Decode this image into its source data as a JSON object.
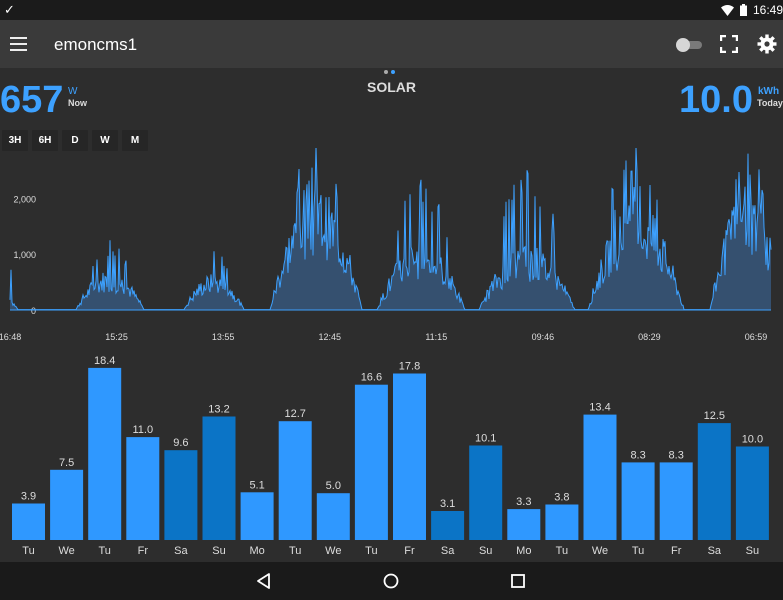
{
  "status_bar": {
    "notification_icon": "checkmark-icon",
    "time": "16:49"
  },
  "app_bar": {
    "title": "emoncms1"
  },
  "page": {
    "title": "SOLAR"
  },
  "power": {
    "value": "657",
    "unit": "W",
    "label": "Now"
  },
  "energy": {
    "value": "10.0",
    "unit": "kWh",
    "label": "Today"
  },
  "ranges": [
    "3H",
    "6H",
    "D",
    "W",
    "M"
  ],
  "colors": {
    "accent": "#3da1ff",
    "bar_light": "#2f98ff",
    "bar_dark": "#0b74c6",
    "area_fill": "#35506f"
  },
  "chart_data": [
    {
      "type": "area",
      "ylim": [
        0,
        2900
      ],
      "yticks": [
        0,
        1000,
        2000
      ],
      "ytick_labels": [
        "0",
        "1,000",
        "2,000"
      ],
      "xtick_labels": [
        "16:48",
        "15:25",
        "13:55",
        "12:45",
        "11:15",
        "09:46",
        "08:29",
        "06:59"
      ],
      "days": [
        {
          "peak": 720,
          "typical": 360
        },
        {
          "peak": 1250,
          "typical": 560
        },
        {
          "peak": 1050,
          "typical": 500
        },
        {
          "peak": 2930,
          "typical": 1700
        },
        {
          "peak": 2330,
          "typical": 950
        },
        {
          "peak": 2500,
          "typical": 900
        },
        {
          "peak": 2910,
          "typical": 1500
        },
        {
          "peak": 2800,
          "typical": 1700
        }
      ]
    },
    {
      "type": "bar",
      "categories": [
        "Tu",
        "We",
        "Tu",
        "Fr",
        "Sa",
        "Su",
        "Mo",
        "Tu",
        "We",
        "Tu",
        "Fr",
        "Sa",
        "Su",
        "Mo",
        "Tu",
        "We",
        "Tu",
        "Fr",
        "Sa",
        "Su"
      ],
      "values": [
        3.9,
        7.5,
        18.4,
        11.0,
        9.6,
        13.2,
        5.1,
        12.7,
        5.0,
        16.6,
        17.8,
        3.1,
        10.1,
        3.3,
        3.8,
        13.4,
        8.3,
        8.3,
        12.5,
        10.0
      ],
      "value_labels": [
        "3.9",
        "7.5",
        "18.4",
        "11.0",
        "9.6",
        "13.2",
        "5.1",
        "12.7",
        "5.0",
        "16.6",
        "17.8",
        "3.1",
        "10.1",
        "3.3",
        "3.8",
        "13.4",
        "8.3",
        "8.3",
        "12.5",
        "10.0"
      ],
      "weekend": [
        false,
        false,
        false,
        false,
        true,
        true,
        false,
        false,
        false,
        false,
        false,
        true,
        true,
        false,
        false,
        false,
        false,
        false,
        true,
        true
      ],
      "ylim": [
        0,
        18.6
      ]
    }
  ]
}
